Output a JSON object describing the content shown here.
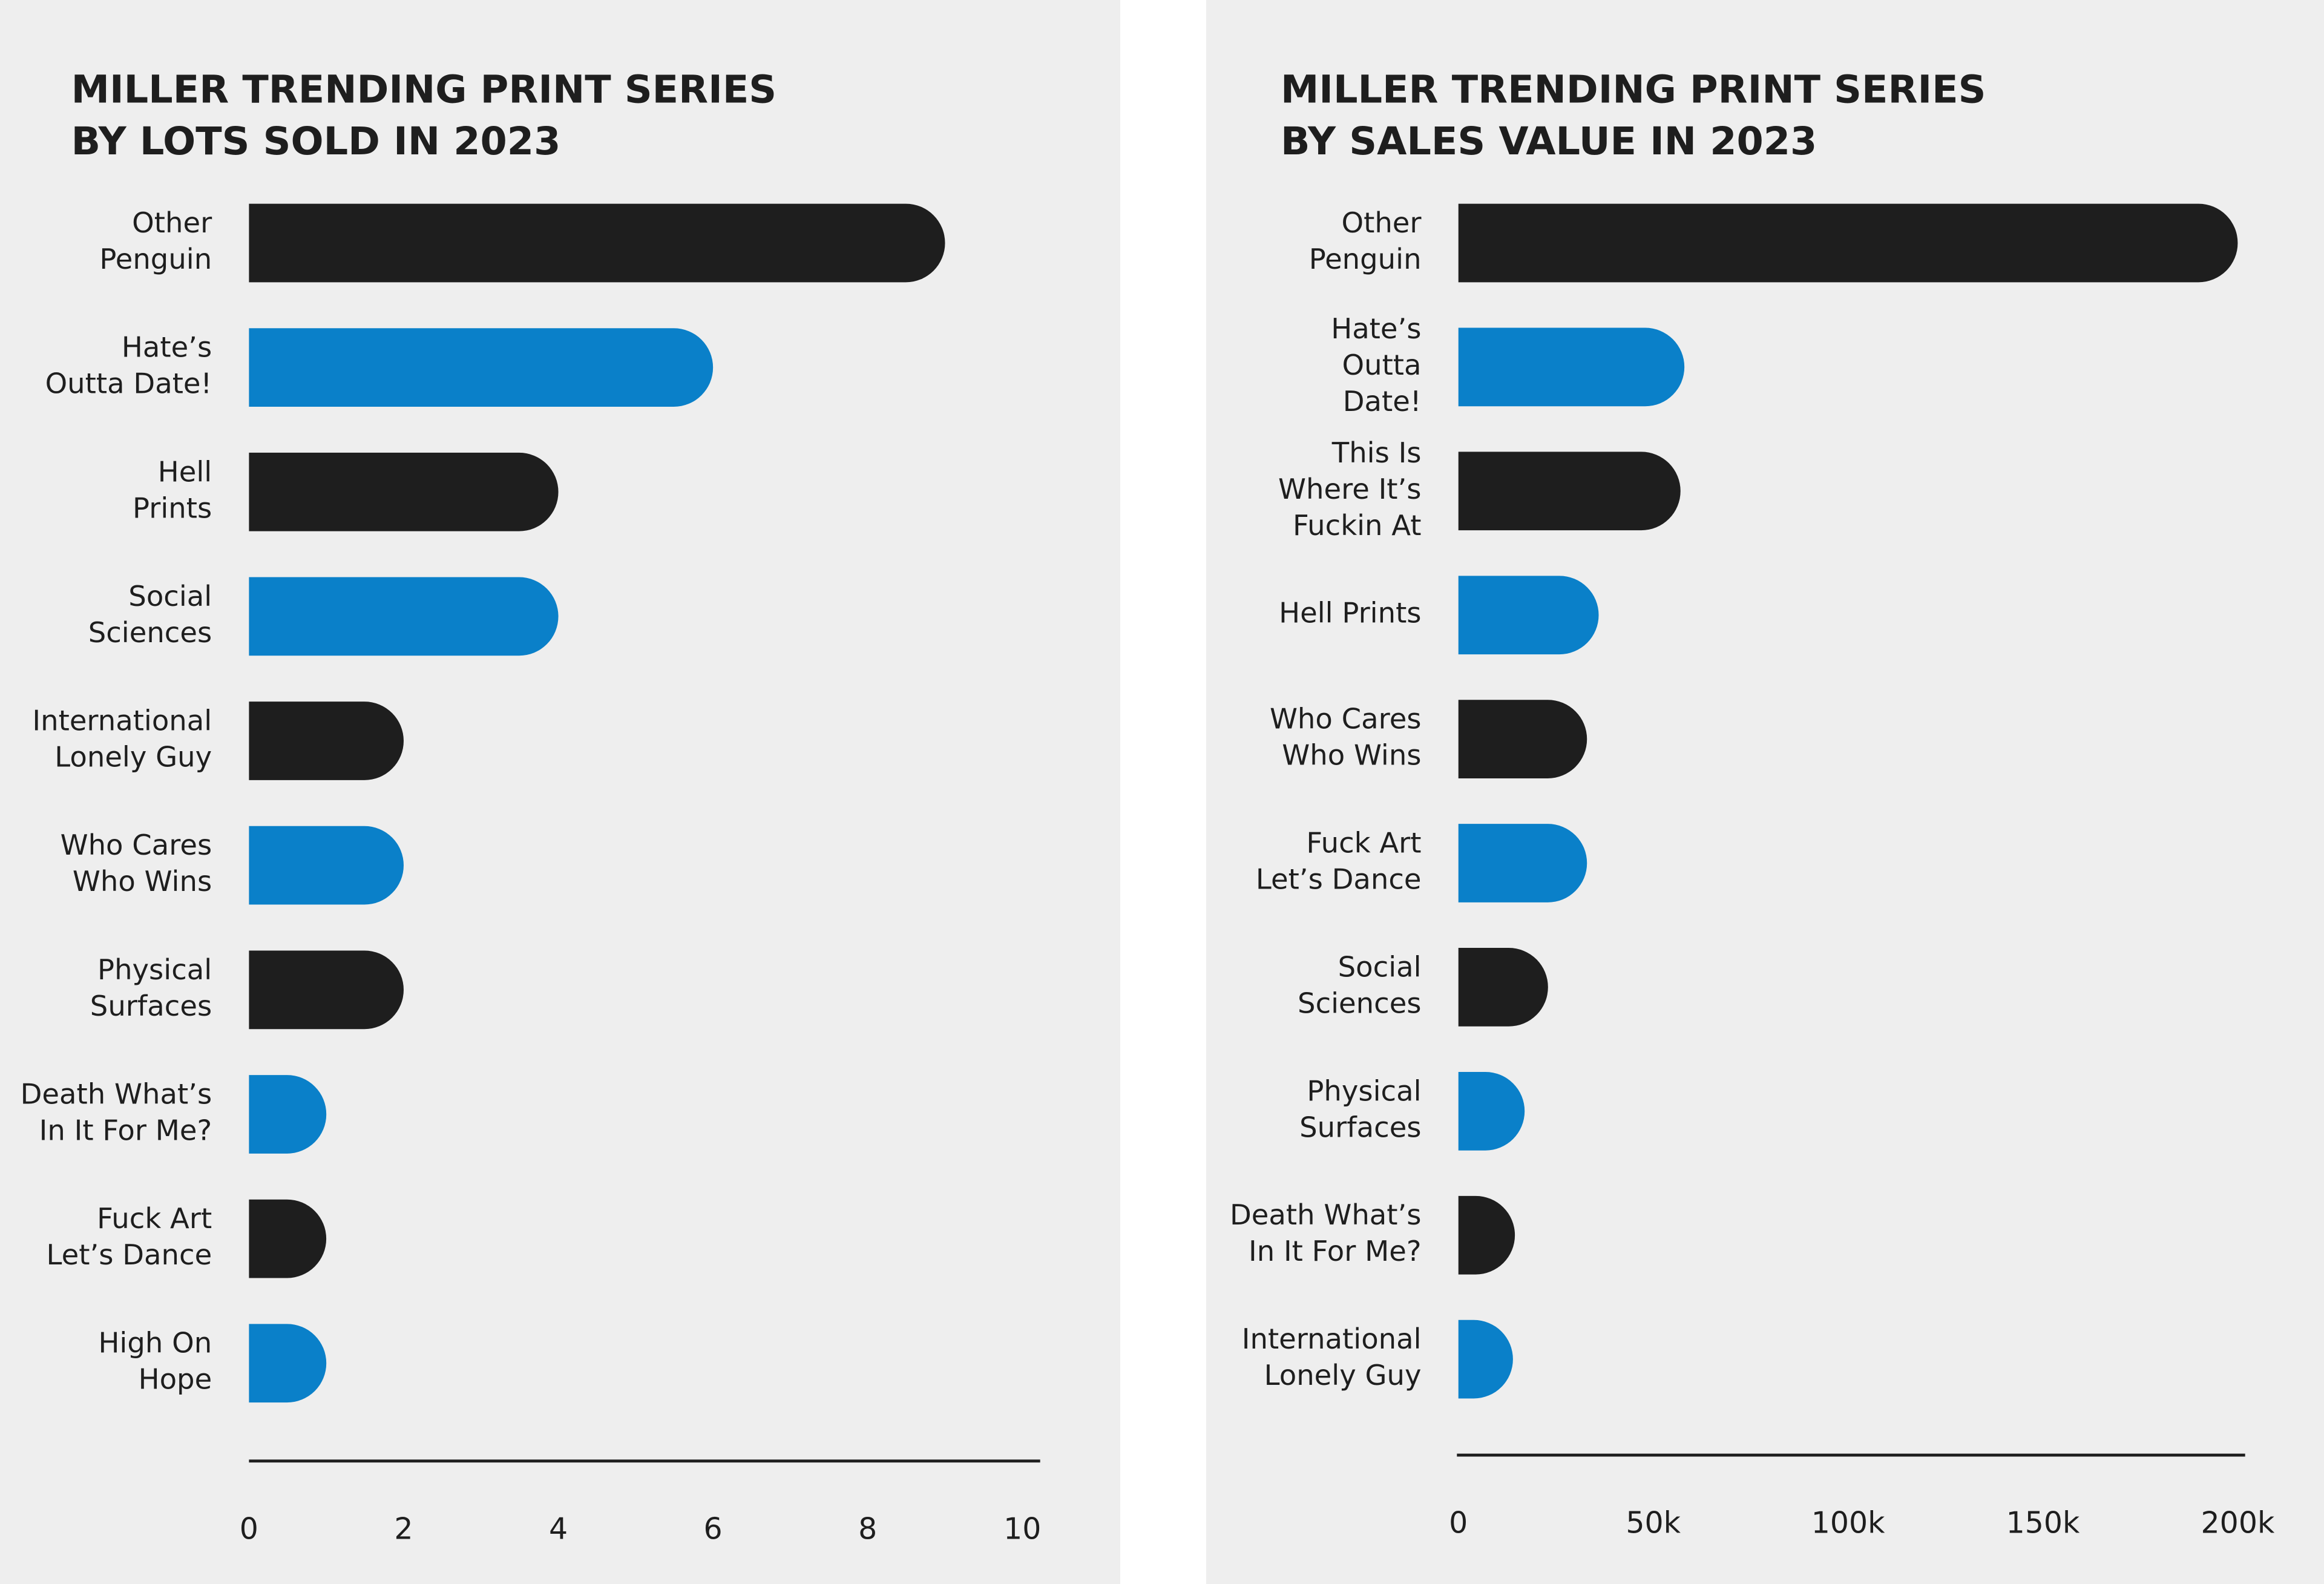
{
  "chart_data": [
    {
      "type": "bar",
      "orientation": "horizontal",
      "title": [
        "MILLER TRENDING PRINT SERIES",
        "BY LOTS SOLD IN 2023"
      ],
      "categories": [
        [
          "Other",
          "Penguin"
        ],
        [
          "Hate’s",
          "Outta Date!"
        ],
        [
          "Hell",
          "Prints"
        ],
        [
          "Social",
          "Sciences"
        ],
        [
          "International",
          "Lonely Guy"
        ],
        [
          "Who Cares",
          "Who Wins"
        ],
        [
          "Physical",
          "Surfaces"
        ],
        [
          "Death What’s",
          "In It For Me?"
        ],
        [
          "Fuck Art",
          "Let’s Dance"
        ],
        [
          "High On",
          "Hope"
        ]
      ],
      "values": [
        9,
        6,
        4,
        4,
        2,
        2,
        2,
        1,
        1,
        1
      ],
      "colors": [
        "#1e1e1e",
        "#0a80c9",
        "#1e1e1e",
        "#0a80c9",
        "#1e1e1e",
        "#0a80c9",
        "#1e1e1e",
        "#0a80c9",
        "#1e1e1e",
        "#0a80c9"
      ],
      "xlim": [
        0,
        10
      ],
      "xticks": [
        0,
        2,
        4,
        6,
        8,
        10
      ]
    },
    {
      "type": "bar",
      "orientation": "horizontal",
      "title": [
        "MILLER TRENDING PRINT SERIES",
        "BY SALES VALUE IN 2023"
      ],
      "categories": [
        [
          "Other",
          "Penguin"
        ],
        [
          "Hate’s",
          "Outta",
          "Date!"
        ],
        [
          "This Is",
          "Where It’s",
          "Fuckin At"
        ],
        [
          "Hell Prints"
        ],
        [
          "Who Cares",
          "Who Wins"
        ],
        [
          "Fuck Art",
          "Let’s Dance"
        ],
        [
          "Social",
          "Sciences"
        ],
        [
          "Physical",
          "Surfaces"
        ],
        [
          "Death What’s",
          "In It For Me?"
        ],
        [
          "International",
          "Lonely Guy"
        ]
      ],
      "values": [
        200000,
        58000,
        57000,
        36000,
        33000,
        33000,
        23000,
        17000,
        14500,
        14000
      ],
      "colors": [
        "#1e1e1e",
        "#0a80c9",
        "#1e1e1e",
        "#0a80c9",
        "#1e1e1e",
        "#0a80c9",
        "#1e1e1e",
        "#0a80c9",
        "#1e1e1e",
        "#0a80c9"
      ],
      "xlim": [
        0,
        200000
      ],
      "xticks": [
        0,
        {
          "value": 50000,
          "label": "50k"
        },
        {
          "value": 100000,
          "label": "100k"
        },
        {
          "value": 150000,
          "label": "150k"
        },
        {
          "value": 200000,
          "label": "200k"
        }
      ]
    }
  ]
}
